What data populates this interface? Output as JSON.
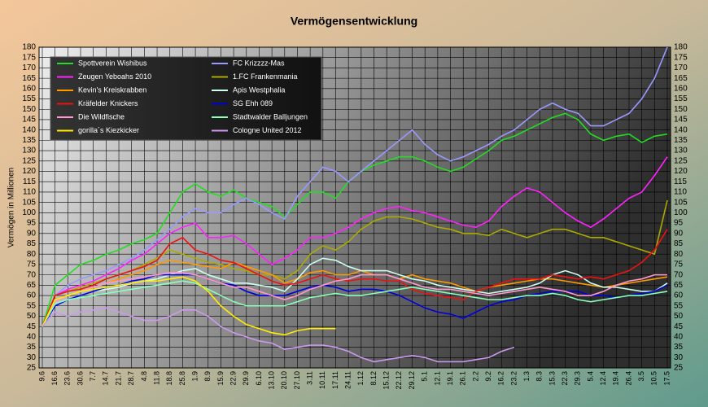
{
  "chart_data": {
    "type": "line",
    "title": "Vermögensentwicklung",
    "y_label": "Vermögen in Millionen",
    "categories": [
      "9.6",
      "16.6",
      "23.6",
      "30.6",
      "7.7",
      "14.7",
      "21.7",
      "28.7",
      "4.8",
      "11.8",
      "18.8",
      "25.8",
      "1.9",
      "8.9",
      "15.9",
      "22.9",
      "29.9",
      "6.10",
      "13.10",
      "20.10",
      "27.10",
      "3.11",
      "10.11",
      "17.11",
      "24.11",
      "1.12",
      "8.12",
      "15.12",
      "22.12",
      "29.12",
      "5.1",
      "12.1",
      "19.1",
      "26.1",
      "2.2",
      "9.2",
      "16.2",
      "23.2",
      "1.3",
      "8.3",
      "15.3",
      "22.3",
      "29.3",
      "5.4",
      "12.4",
      "19.4",
      "26.4",
      "3.5",
      "10.5",
      "17.5"
    ],
    "ylim": [
      25,
      180
    ],
    "yticks": [
      25,
      30,
      35,
      40,
      45,
      50,
      55,
      60,
      65,
      70,
      75,
      80,
      85,
      90,
      95,
      100,
      105,
      110,
      115,
      120,
      125,
      130,
      135,
      140,
      145,
      150,
      155,
      160,
      165,
      170,
      175,
      180
    ],
    "grid": true,
    "legend": "upper left",
    "right_axis": true,
    "series": [
      {
        "name": "Spottverein Wishibus",
        "color": "#22dd22",
        "values": [
          45,
          65,
          70,
          75,
          77,
          80,
          82,
          85,
          87,
          90,
          100,
          110,
          114,
          110,
          108,
          111,
          107,
          105,
          103,
          98,
          104,
          110,
          110,
          107,
          115,
          120,
          123,
          125,
          127,
          127,
          125,
          122,
          120,
          122,
          126,
          130,
          135,
          137,
          140,
          143,
          146,
          148,
          145,
          138,
          135,
          137,
          138,
          134,
          137,
          138
        ]
      },
      {
        "name": "FC Krizzzz-Mas",
        "color": "#9999ff",
        "values": [
          45,
          60,
          65,
          68,
          70,
          72,
          75,
          78,
          82,
          87,
          92,
          98,
          102,
          100,
          100,
          104,
          107,
          104,
          100,
          97,
          108,
          115,
          122,
          120,
          115,
          120,
          125,
          130,
          135,
          140,
          133,
          128,
          125,
          127,
          130,
          133,
          137,
          140,
          145,
          150,
          153,
          150,
          148,
          142,
          142,
          145,
          148,
          155,
          165,
          180
        ]
      },
      {
        "name": "Zeugen Yeboahs 2010",
        "color": "#ff22ff",
        "values": [
          45,
          60,
          63,
          65,
          67,
          70,
          73,
          77,
          80,
          85,
          90,
          93,
          95,
          88,
          88,
          89,
          85,
          80,
          75,
          78,
          82,
          88,
          88,
          90,
          93,
          97,
          100,
          102,
          103,
          101,
          100,
          98,
          96,
          94,
          93,
          96,
          103,
          108,
          112,
          110,
          105,
          100,
          96,
          93,
          97,
          102,
          107,
          110,
          118,
          127
        ]
      },
      {
        "name": "1.FC Frankenmania",
        "color": "#aaaa00",
        "values": [
          45,
          60,
          62,
          64,
          66,
          68,
          70,
          72,
          75,
          78,
          82,
          80,
          78,
          76,
          75,
          73,
          72,
          70,
          70,
          68,
          72,
          80,
          84,
          82,
          86,
          92,
          96,
          98,
          98,
          97,
          95,
          93,
          92,
          90,
          90,
          89,
          92,
          90,
          88,
          90,
          92,
          92,
          90,
          88,
          88,
          86,
          84,
          82,
          80,
          106
        ]
      },
      {
        "name": "Kevin's Kreiskrabben",
        "color": "#ff9900",
        "values": [
          45,
          58,
          60,
          62,
          64,
          66,
          68,
          70,
          72,
          75,
          77,
          76,
          75,
          74,
          73,
          76,
          74,
          72,
          70,
          66,
          68,
          71,
          72,
          70,
          70,
          72,
          70,
          70,
          68,
          70,
          68,
          67,
          66,
          64,
          62,
          64,
          65,
          66,
          67,
          68,
          68,
          67,
          66,
          65,
          64,
          65,
          66,
          67,
          68,
          69
        ]
      },
      {
        "name": "Apis Westphalia",
        "color": "#ccffee",
        "values": [
          45,
          56,
          58,
          60,
          62,
          63,
          64,
          66,
          67,
          68,
          70,
          72,
          73,
          70,
          68,
          66,
          66,
          65,
          64,
          62,
          68,
          75,
          78,
          77,
          74,
          72,
          72,
          72,
          70,
          68,
          67,
          65,
          64,
          63,
          62,
          61,
          62,
          63,
          64,
          66,
          70,
          72,
          70,
          66,
          64,
          64,
          63,
          62,
          62,
          66
        ]
      },
      {
        "name": "Kräfelder Knickers",
        "color": "#ee1111",
        "values": [
          45,
          60,
          62,
          63,
          65,
          68,
          70,
          72,
          74,
          77,
          85,
          88,
          82,
          80,
          77,
          76,
          73,
          70,
          67,
          65,
          66,
          68,
          70,
          68,
          67,
          68,
          68,
          67,
          67,
          63,
          61,
          60,
          59,
          58,
          62,
          64,
          66,
          68,
          68,
          68,
          70,
          69,
          68,
          69,
          68,
          70,
          72,
          76,
          82,
          92
        ]
      },
      {
        "name": "SG Ehh 089",
        "color": "#0000dd",
        "values": [
          45,
          55,
          58,
          60,
          62,
          64,
          65,
          67,
          68,
          70,
          70,
          70,
          70,
          68,
          66,
          65,
          62,
          60,
          60,
          60,
          62,
          64,
          65,
          64,
          62,
          63,
          63,
          62,
          60,
          57,
          54,
          52,
          51,
          49,
          52,
          55,
          57,
          58,
          60,
          61,
          62,
          62,
          62,
          60,
          60,
          59,
          60,
          61,
          62,
          65
        ]
      },
      {
        "name": "Die Wildfische",
        "color": "#ff99cc",
        "values": [
          45,
          57,
          60,
          62,
          64,
          66,
          67,
          68,
          69,
          70,
          71,
          71,
          70,
          68,
          66,
          64,
          64,
          62,
          60,
          58,
          60,
          63,
          65,
          67,
          68,
          70,
          70,
          70,
          68,
          66,
          64,
          63,
          63,
          62,
          61,
          60,
          61,
          62,
          63,
          64,
          63,
          62,
          60,
          60,
          62,
          65,
          67,
          68,
          70,
          70
        ]
      },
      {
        "name": "Stadtwalder Balljungen",
        "color": "#88ffbb",
        "values": [
          45,
          56,
          58,
          59,
          60,
          61,
          62,
          63,
          64,
          65,
          66,
          67,
          66,
          63,
          60,
          57,
          55,
          55,
          55,
          55,
          57,
          59,
          60,
          61,
          60,
          60,
          61,
          62,
          63,
          64,
          63,
          62,
          61,
          60,
          59,
          58,
          58,
          59,
          60,
          60,
          61,
          60,
          58,
          57,
          58,
          59,
          60,
          60,
          61,
          62
        ]
      },
      {
        "name": "gorilla´s Kiezkicker",
        "color": "#ffee00",
        "values": [
          45,
          58,
          60,
          62,
          63,
          64,
          65,
          66,
          67,
          67,
          68,
          69,
          67,
          62,
          55,
          50,
          46,
          44,
          42,
          41,
          43,
          44,
          44,
          44,
          null,
          null,
          null,
          null,
          null,
          null,
          null,
          null,
          null,
          null,
          null,
          null,
          null,
          null,
          null,
          null,
          null,
          null,
          null,
          null,
          null,
          null,
          null,
          null,
          null,
          null
        ]
      },
      {
        "name": "Cologne United 2012",
        "color": "#cc99ee",
        "values": [
          45,
          52,
          50,
          52,
          53,
          54,
          52,
          50,
          48,
          48,
          50,
          53,
          53,
          50,
          45,
          42,
          40,
          38,
          37,
          34,
          35,
          36,
          36,
          35,
          33,
          30,
          28,
          29,
          30,
          31,
          30,
          28,
          28,
          28,
          29,
          30,
          33,
          35,
          null,
          null,
          null,
          null,
          null,
          null,
          null,
          null,
          null,
          null,
          null,
          null
        ]
      }
    ]
  }
}
